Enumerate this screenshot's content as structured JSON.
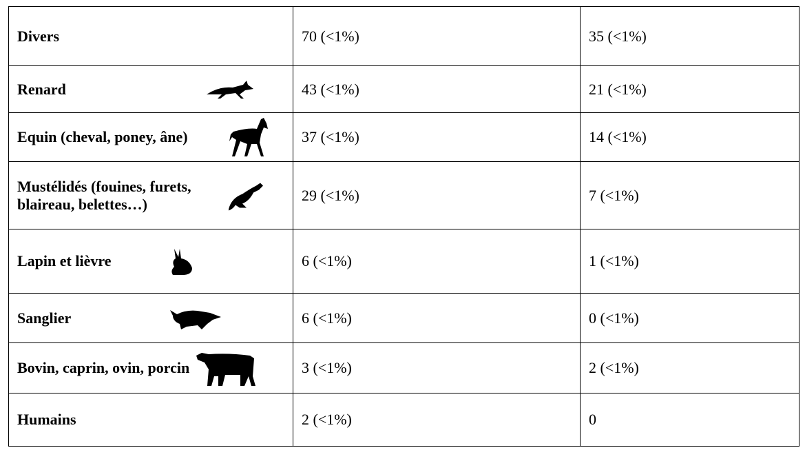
{
  "table": {
    "rows": [
      [
        "Divers",
        "70 (<1%)",
        "35 (<1%)"
      ],
      [
        "Renard",
        "43 (<1%)",
        "21 (<1%)"
      ],
      [
        "Equin (cheval, poney, âne)",
        "37 (<1%)",
        "14 (<1%)"
      ],
      [
        "Mustélidés (fouines, furets, blaireau, belettes…)",
        "29 (<1%)",
        "7 (<1%)"
      ],
      [
        "Lapin et lièvre",
        "6 (<1%)",
        "1 (<1%)"
      ],
      [
        "Sanglier",
        "6 (<1%)",
        "0 (<1%)"
      ],
      [
        "Bovin, caprin, ovin, porcin",
        "3 (<1%)",
        "2 (<1%)"
      ],
      [
        "Humains",
        "2 (<1%)",
        "0"
      ]
    ]
  }
}
